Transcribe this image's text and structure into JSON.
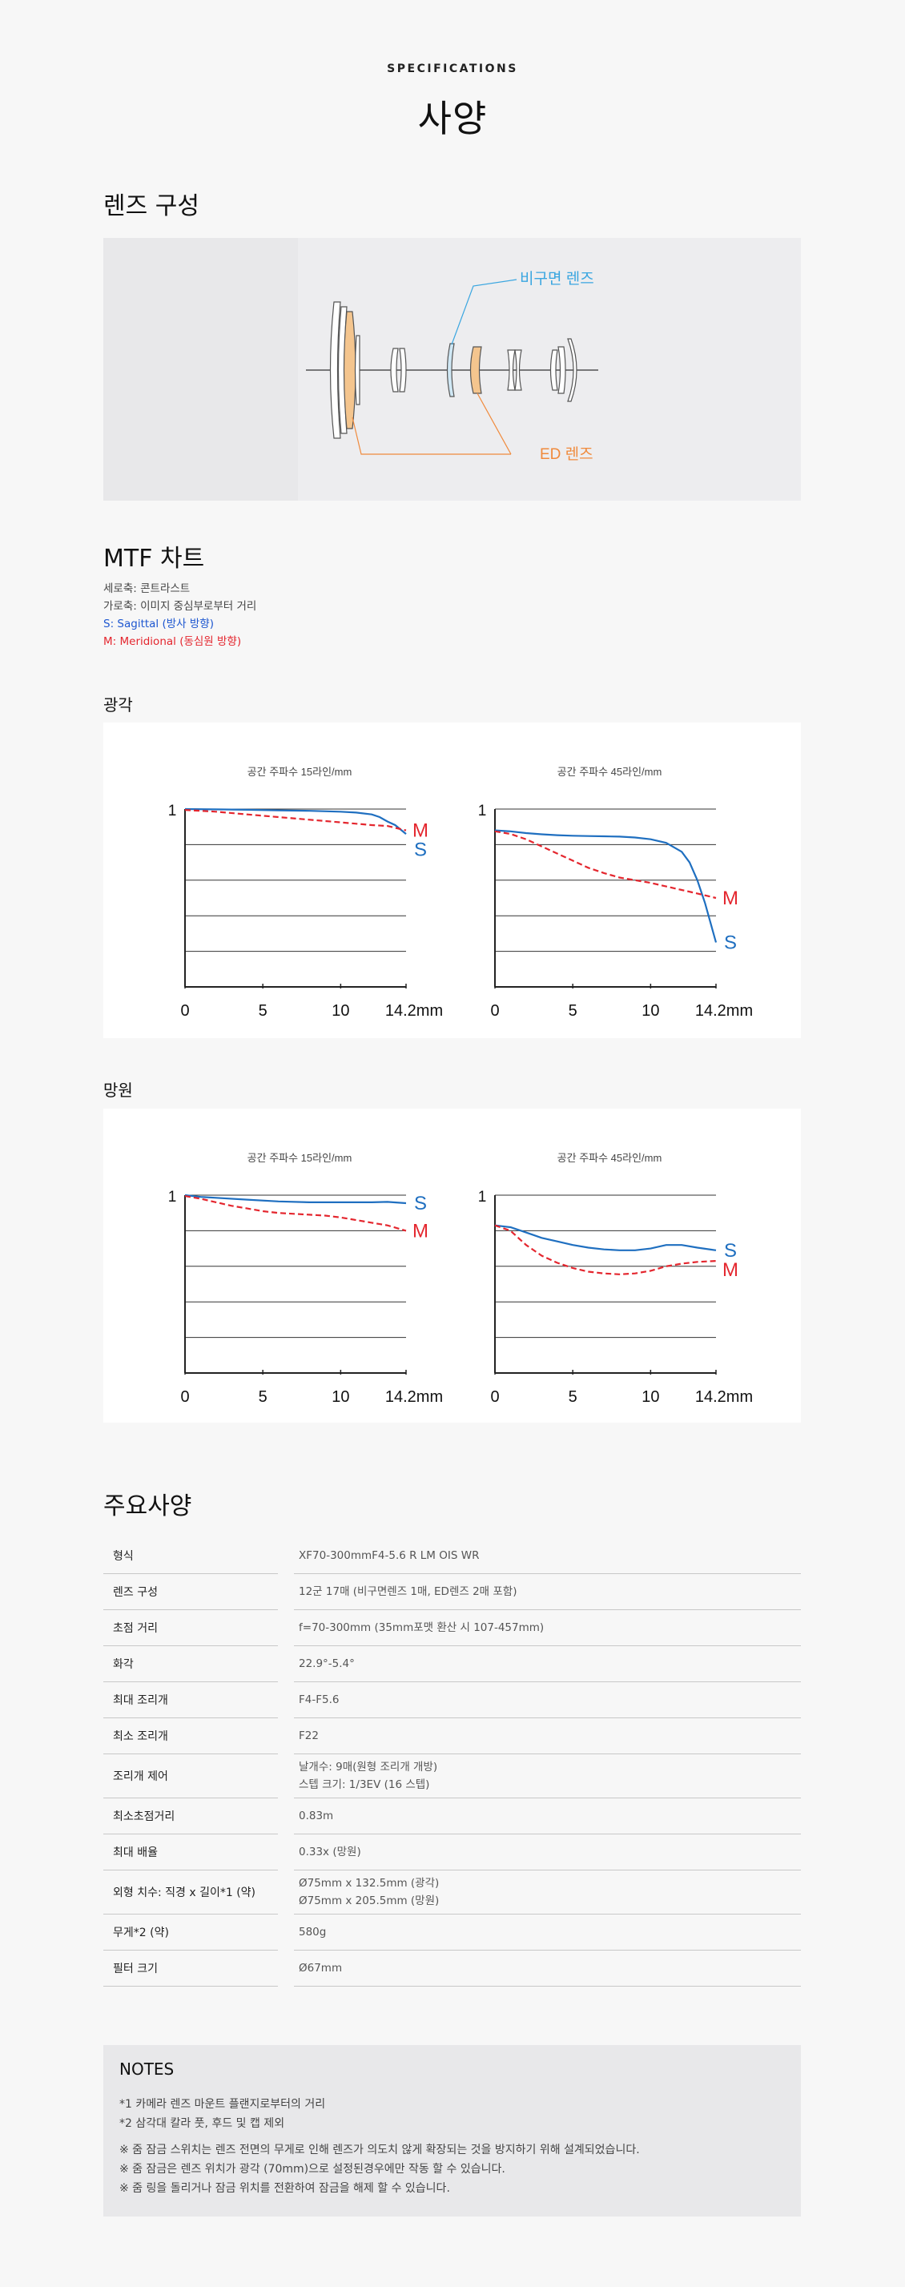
{
  "header": {
    "eyebrow": "SPECIFICATIONS",
    "title": "사양"
  },
  "lens_section": {
    "title": "렌즈 구성",
    "aspherical_label": "비구면 렌즈",
    "ed_label": "ED 렌즈",
    "aspherical_color": "#3aa6e0",
    "ed_color": "#f08a3c"
  },
  "mtf": {
    "title": "MTF 차트",
    "legend": {
      "vertical": "세로축: 콘트라스트",
      "horizontal": "가로축: 이미지 중심부로부터 거리",
      "sagittal": "S: Sagittal (방사 방향)",
      "meridional": "M: Meridional (동심원 방향)"
    },
    "wide_title": "광각",
    "tele_title": "망원",
    "colors": {
      "S": "#1f6fc0",
      "M": "#e4262e"
    }
  },
  "chart_data": [
    {
      "type": "line",
      "group": "광각",
      "title": "공간 주파수 15라인/mm",
      "x_ticks": [
        "0",
        "5",
        "10",
        "14.2mm"
      ],
      "y_tick_label": "1",
      "xlim": [
        0,
        14.2
      ],
      "ylim": [
        0,
        1
      ],
      "series": [
        {
          "name": "S",
          "x": [
            0,
            2,
            4,
            6,
            8,
            10,
            11,
            12,
            12.5,
            13,
            13.5,
            14.2
          ],
          "y": [
            1.0,
            0.998,
            0.996,
            0.993,
            0.99,
            0.985,
            0.98,
            0.97,
            0.955,
            0.93,
            0.91,
            0.86
          ]
        },
        {
          "name": "M",
          "x": [
            0,
            2,
            4,
            6,
            8,
            10,
            12,
            13,
            14.2
          ],
          "y": [
            0.995,
            0.985,
            0.97,
            0.955,
            0.94,
            0.925,
            0.91,
            0.905,
            0.88
          ]
        }
      ]
    },
    {
      "type": "line",
      "group": "광각",
      "title": "공간 주파수 45라인/mm",
      "x_ticks": [
        "0",
        "5",
        "10",
        "14.2mm"
      ],
      "y_tick_label": "1",
      "xlim": [
        0,
        14.2
      ],
      "ylim": [
        0,
        1
      ],
      "series": [
        {
          "name": "S",
          "x": [
            0,
            1,
            2,
            3,
            4,
            5,
            6,
            7,
            8,
            9,
            10,
            11,
            12,
            12.5,
            13,
            13.5,
            14.2
          ],
          "y": [
            0.88,
            0.875,
            0.865,
            0.858,
            0.853,
            0.85,
            0.848,
            0.847,
            0.845,
            0.84,
            0.83,
            0.81,
            0.76,
            0.7,
            0.6,
            0.47,
            0.25
          ]
        },
        {
          "name": "M",
          "x": [
            0,
            1,
            2,
            3,
            4,
            5,
            6,
            7,
            8,
            9,
            10,
            11,
            12,
            13,
            14.2
          ],
          "y": [
            0.875,
            0.86,
            0.83,
            0.79,
            0.75,
            0.71,
            0.67,
            0.64,
            0.615,
            0.6,
            0.585,
            0.565,
            0.545,
            0.525,
            0.5
          ]
        }
      ]
    },
    {
      "type": "line",
      "group": "망원",
      "title": "공간 주파수 15라인/mm",
      "x_ticks": [
        "0",
        "5",
        "10",
        "14.2mm"
      ],
      "y_tick_label": "1",
      "xlim": [
        0,
        14.2
      ],
      "ylim": [
        0,
        1
      ],
      "series": [
        {
          "name": "S",
          "x": [
            0,
            1,
            2,
            4,
            6,
            8,
            10,
            12,
            13,
            14.2
          ],
          "y": [
            1.0,
            0.99,
            0.985,
            0.975,
            0.965,
            0.96,
            0.96,
            0.96,
            0.962,
            0.955
          ]
        },
        {
          "name": "M",
          "x": [
            0,
            1,
            2,
            3,
            4,
            5,
            6,
            7,
            8,
            9,
            10,
            11,
            12,
            13,
            14.2
          ],
          "y": [
            0.995,
            0.98,
            0.96,
            0.94,
            0.925,
            0.91,
            0.9,
            0.895,
            0.89,
            0.885,
            0.875,
            0.86,
            0.845,
            0.83,
            0.8
          ]
        }
      ]
    },
    {
      "type": "line",
      "group": "망원",
      "title": "공간 주파수 45라인/mm",
      "x_ticks": [
        "0",
        "5",
        "10",
        "14.2mm"
      ],
      "y_tick_label": "1",
      "xlim": [
        0,
        14.2
      ],
      "ylim": [
        0,
        1
      ],
      "series": [
        {
          "name": "S",
          "x": [
            0,
            1,
            2,
            3,
            4,
            5,
            6,
            7,
            8,
            9,
            10,
            11,
            12,
            13,
            14.2
          ],
          "y": [
            0.83,
            0.82,
            0.79,
            0.76,
            0.74,
            0.72,
            0.705,
            0.695,
            0.69,
            0.69,
            0.7,
            0.72,
            0.72,
            0.705,
            0.69
          ]
        },
        {
          "name": "M",
          "x": [
            0,
            1,
            2,
            3,
            4,
            5,
            6,
            7,
            8,
            9,
            10,
            11,
            12,
            13,
            14.2
          ],
          "y": [
            0.83,
            0.8,
            0.72,
            0.66,
            0.62,
            0.59,
            0.57,
            0.56,
            0.555,
            0.56,
            0.575,
            0.6,
            0.615,
            0.625,
            0.63
          ]
        }
      ]
    }
  ],
  "specs": {
    "title": "주요사양",
    "rows": [
      {
        "key": "형식",
        "value": "XF70-300mmF4-5.6 R LM OIS WR"
      },
      {
        "key": "렌즈 구성",
        "value": "12군 17매 (비구면렌즈 1매, ED렌즈 2매 포함)"
      },
      {
        "key": "초점 거리",
        "value": "f=70-300mm (35mm포맷 환산 시 107-457mm)"
      },
      {
        "key": "화각",
        "value": "22.9°-5.4°"
      },
      {
        "key": "최대 조리개",
        "value": "F4-F5.6"
      },
      {
        "key": "최소 조리개",
        "value": "F22"
      },
      {
        "key": "조리개 제어",
        "value": "날개수: 9매(원형 조리개 개방)",
        "value2": "스텝 크기: 1/3EV (16 스텝)"
      },
      {
        "key": "최소초점거리",
        "value": "0.83m"
      },
      {
        "key": "최대 배율",
        "value": "0.33x (망원)"
      },
      {
        "key": "외형 치수: 직경 x 길이*1 (약)",
        "value": "Ø75mm x 132.5mm (광각)",
        "value2": "Ø75mm x 205.5mm (망원)"
      },
      {
        "key": "무게*2 (약)",
        "value": "580g"
      },
      {
        "key": "필터 크기",
        "value": "Ø67mm"
      }
    ]
  },
  "notes": {
    "title": "NOTES",
    "lines": [
      "*1 카메라 렌즈 마운트 플랜지로부터의 거리",
      "*2 삼각대 칼라 풋, 후드 및 캡 제외",
      "※ 줌 잠금 스위치는 렌즈 전면의 무게로 인해 렌즈가 의도치 않게 확장되는 것을 방지하기 위해 설계되었습니다.",
      "※ 줌 잠금은 렌즈 위치가 광각 (70mm)으로 설정된경우에만 작동 할 수 있습니다.",
      "※ 줌 링을 돌리거나 잠금 위치를 전환하여 잠금을 해제 할 수 있습니다."
    ]
  }
}
